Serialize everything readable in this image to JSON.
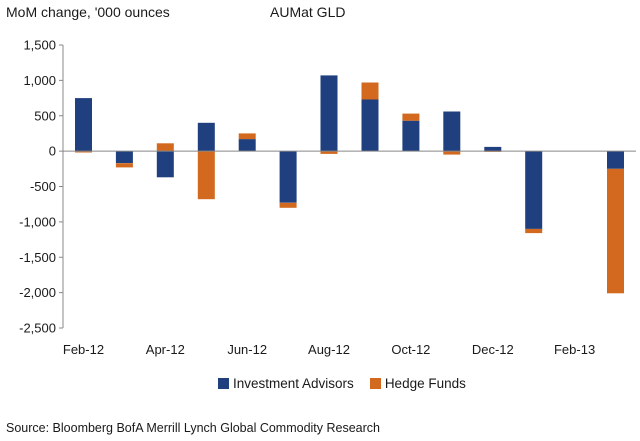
{
  "chart_data": {
    "type": "bar",
    "stacked": true,
    "title": "AUMat GLD",
    "ylabel": "MoM change, '000 ounces",
    "xlabel": "",
    "ylim": [
      -2500,
      1500
    ],
    "yticks": [
      1500,
      1000,
      500,
      0,
      -500,
      -1000,
      -1500,
      -2000,
      -2500
    ],
    "ytick_labels": [
      "1,500",
      "1,000",
      "500",
      "0",
      "-500",
      "-1,000",
      "-1,500",
      "-2,000",
      "-2,500"
    ],
    "categories": [
      "Feb-12",
      "Mar-12",
      "Apr-12",
      "May-12",
      "Jun-12",
      "Jul-12",
      "Aug-12",
      "Sep-12",
      "Oct-12",
      "Nov-12",
      "Dec-12",
      "Jan-13",
      "Feb-13",
      "Mar-13"
    ],
    "xtick_labels": [
      "Feb-12",
      "Apr-12",
      "Jun-12",
      "Aug-12",
      "Oct-12",
      "Dec-12",
      "Feb-13"
    ],
    "series": [
      {
        "name": "Investment Advisors",
        "color": "#1f3f7f",
        "values": [
          750,
          -170,
          -370,
          400,
          170,
          -730,
          1070,
          730,
          430,
          560,
          60,
          -1100,
          0,
          -250
        ]
      },
      {
        "name": "Hedge Funds",
        "color": "#d2691e",
        "values": [
          -20,
          -60,
          110,
          -680,
          80,
          -70,
          -40,
          240,
          100,
          -50,
          -10,
          -60,
          0,
          -1760
        ]
      }
    ],
    "legend_position": "bottom",
    "grid": false
  },
  "source": "Source:  Bloomberg BofA Merrill Lynch Global Commodity Research"
}
